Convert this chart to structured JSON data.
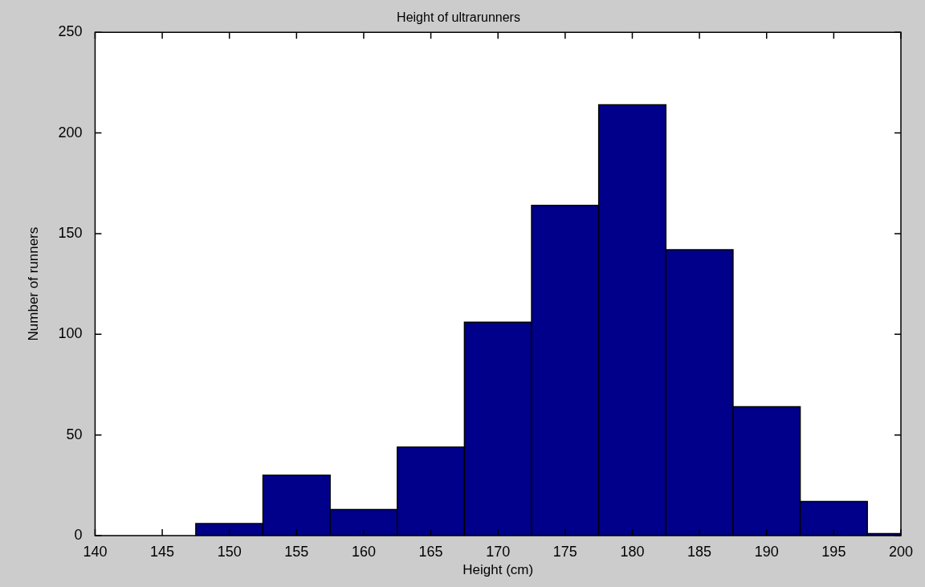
{
  "chart_data": {
    "type": "histogram",
    "title": "Height of ultrarunners",
    "xlabel": "Height (cm)",
    "ylabel": "Number of runners",
    "bins": [
      147.5,
      152.5,
      157.5,
      162.5,
      167.5,
      172.5,
      177.5,
      182.5,
      187.5,
      192.5,
      197.5,
      200
    ],
    "values": [
      6,
      30,
      13,
      44,
      106,
      164,
      214,
      142,
      64,
      17,
      1
    ],
    "color": "#00008b",
    "xlim": [
      140,
      200
    ],
    "xticks": [
      140,
      145,
      150,
      155,
      160,
      165,
      170,
      175,
      180,
      185,
      190,
      195,
      200
    ],
    "ylim": [
      0,
      250
    ],
    "yticks": [
      0,
      50,
      100,
      150,
      200,
      250
    ]
  }
}
